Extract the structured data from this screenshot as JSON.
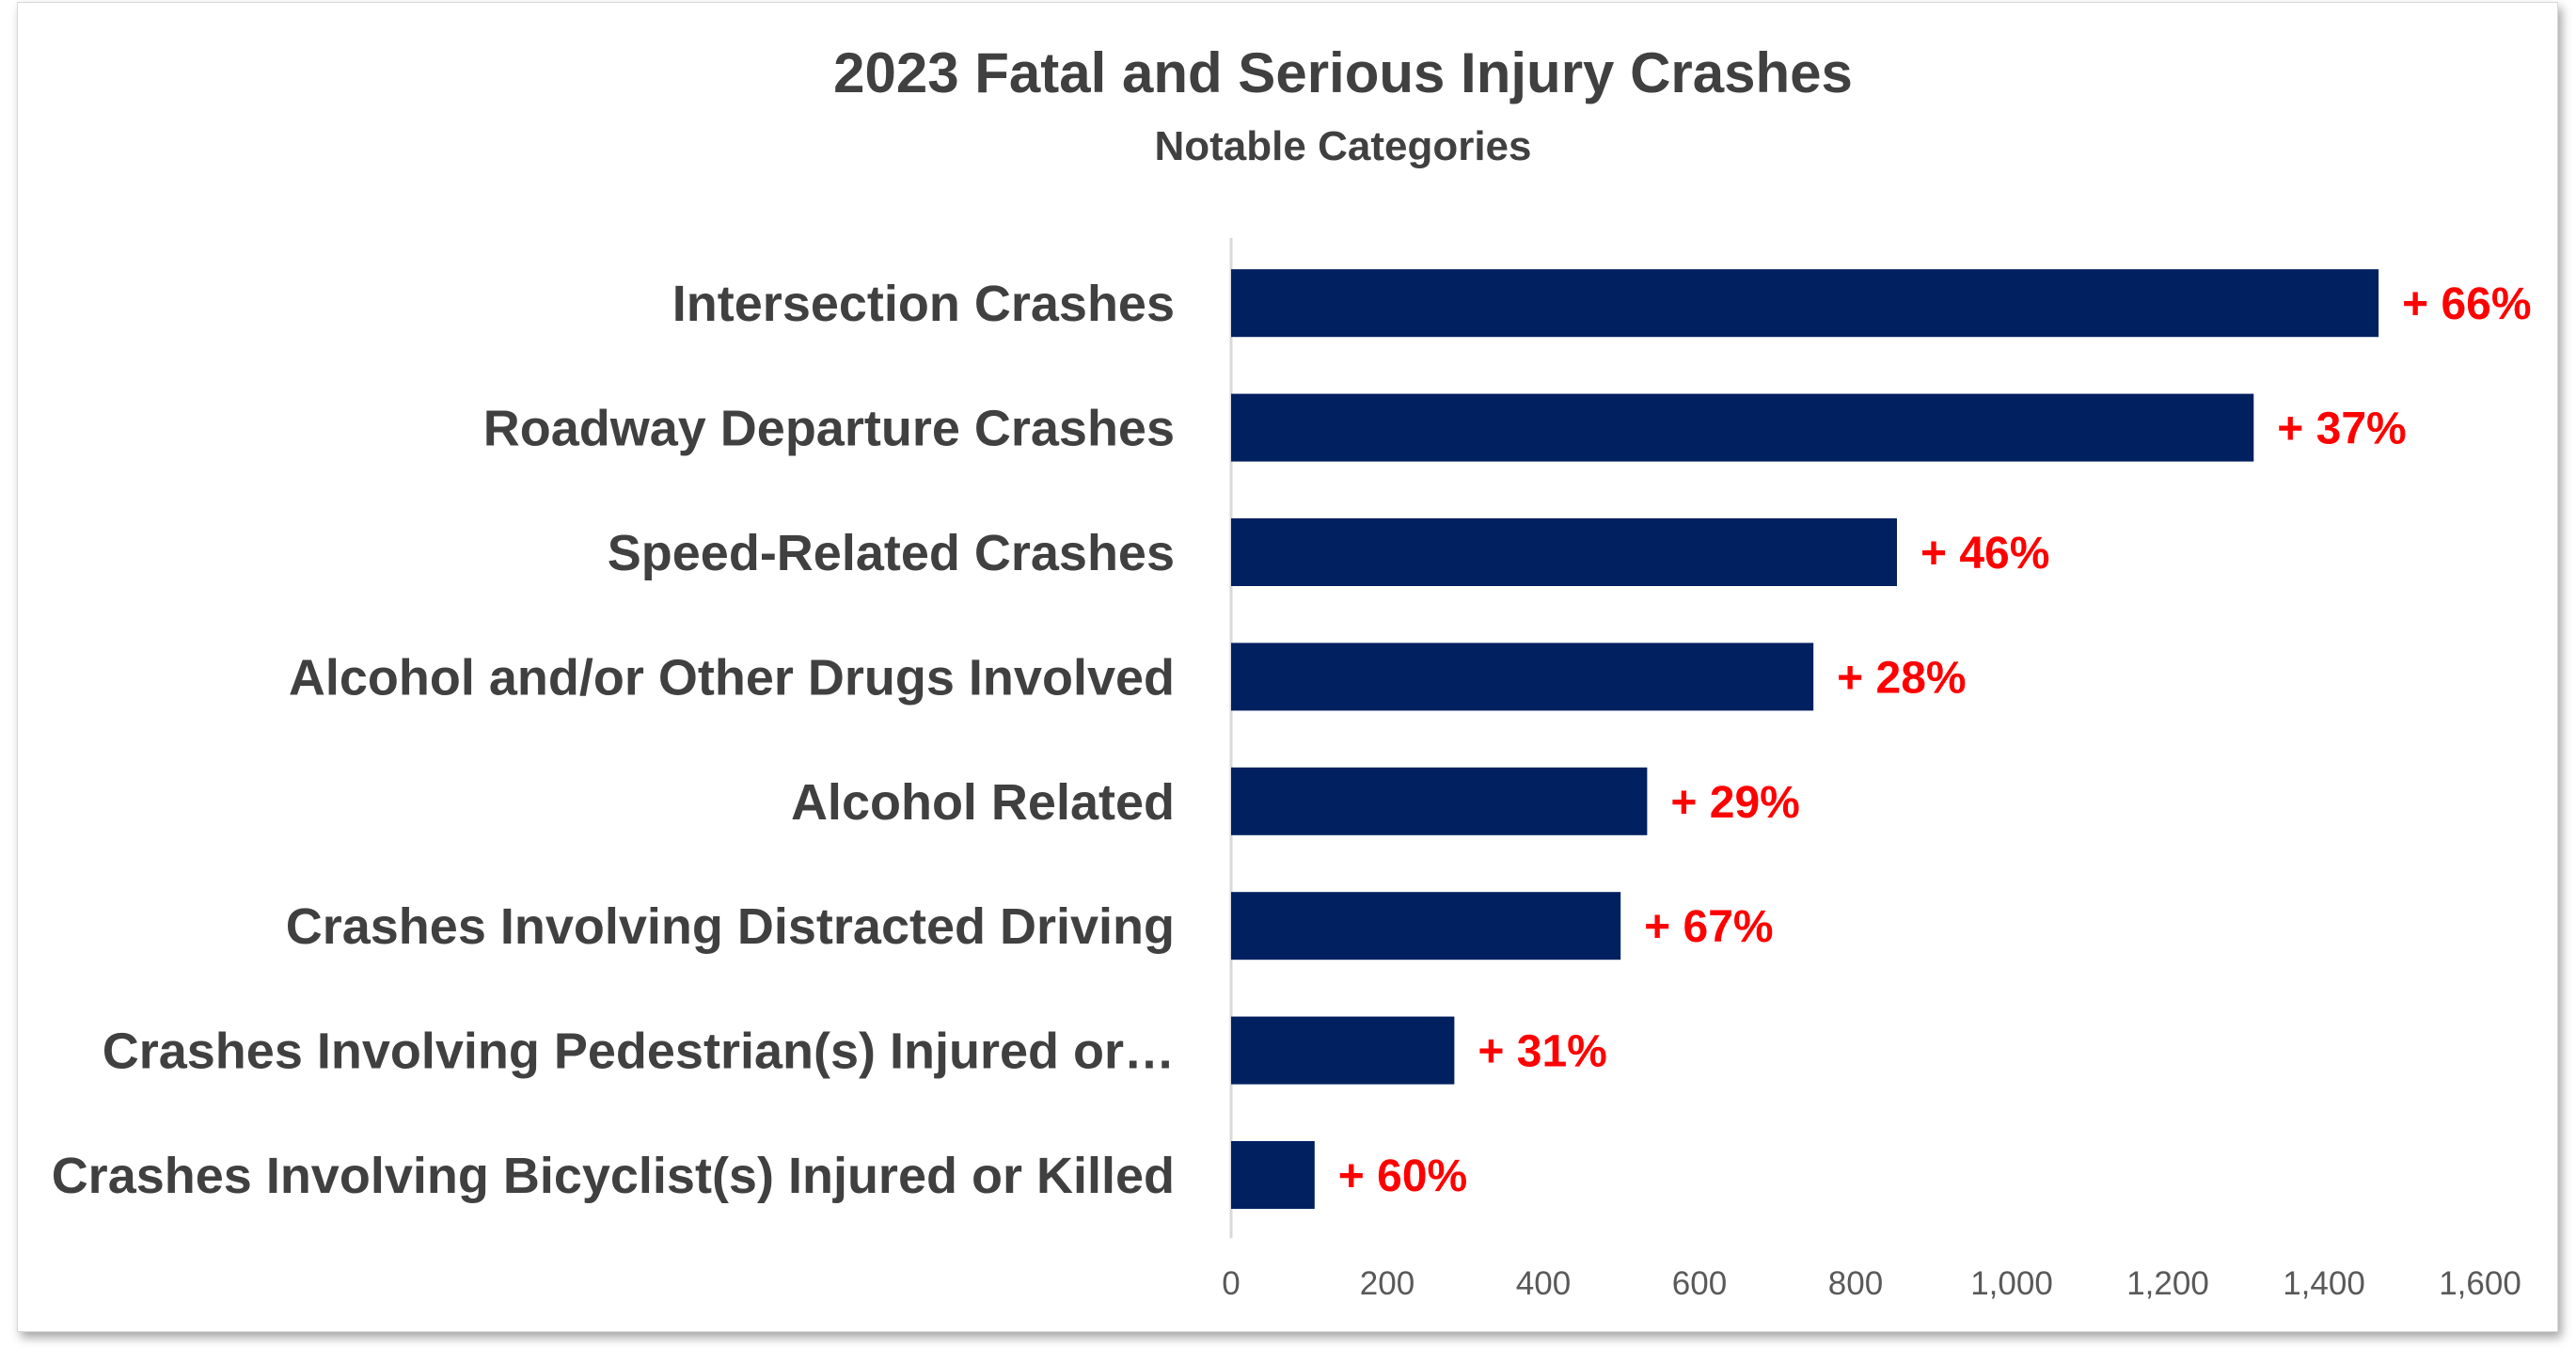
{
  "chart_data": {
    "type": "bar",
    "orientation": "horizontal",
    "title": "2023 Fatal and Serious Injury Crashes",
    "subtitle": "Notable Categories",
    "categories": [
      "Intersection Crashes",
      "Roadway Departure Crashes",
      "Speed-Related Crashes",
      "Alcohol and/or Other Drugs Involved",
      "Alcohol Related",
      "Crashes Involving Distracted Driving",
      "Crashes Involving Pedestrian(s) Injured or…",
      "Crashes Involving Bicyclist(s) Injured or Killed"
    ],
    "values": [
      1470,
      1310,
      853,
      746,
      533,
      499,
      286,
      107
    ],
    "data_labels": [
      "+ 66%",
      "+ 37%",
      "+ 46%",
      "+ 28%",
      "+ 29%",
      "+ 67%",
      "+ 31%",
      "+ 60%"
    ],
    "xlim": [
      0,
      1600
    ],
    "xticks": [
      0,
      200,
      400,
      600,
      800,
      1000,
      1200,
      1400,
      1600
    ],
    "xtick_labels": [
      "0",
      "200",
      "400",
      "600",
      "800",
      "1,000",
      "1,200",
      "1,400",
      "1,600"
    ],
    "grid": false,
    "legend": "none",
    "bar_color": "#002060",
    "label_color": "#ff0000"
  }
}
